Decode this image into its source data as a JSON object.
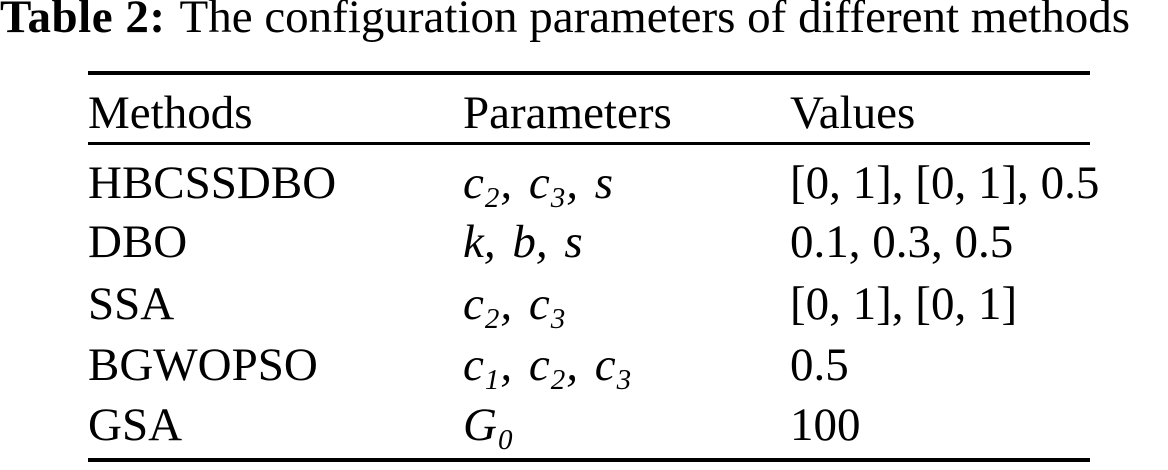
{
  "title": {
    "label": "Table 2:",
    "caption": "The configuration parameters of different methods"
  },
  "table": {
    "columns": [
      "Methods",
      "Parameters",
      "Values"
    ],
    "rows": [
      {
        "method": "HBCSSDBO",
        "parameters": [
          {
            "base": "c",
            "sub": "2"
          },
          {
            "base": "c",
            "sub": "3"
          },
          {
            "base": "s",
            "sub": ""
          }
        ],
        "values": "[0, 1], [0, 1], 0.5"
      },
      {
        "method": "DBO",
        "parameters": [
          {
            "base": "k",
            "sub": ""
          },
          {
            "base": "b",
            "sub": ""
          },
          {
            "base": "s",
            "sub": ""
          }
        ],
        "values": "0.1, 0.3, 0.5"
      },
      {
        "method": "SSA",
        "parameters": [
          {
            "base": "c",
            "sub": "2"
          },
          {
            "base": "c",
            "sub": "3"
          }
        ],
        "values": "[0, 1], [0, 1]"
      },
      {
        "method": "BGWOPSO",
        "parameters": [
          {
            "base": "c",
            "sub": "1"
          },
          {
            "base": "c",
            "sub": "2"
          },
          {
            "base": "c",
            "sub": "3"
          }
        ],
        "values": "0.5"
      },
      {
        "method": "GSA",
        "parameters": [
          {
            "base": "G",
            "sub": "0"
          }
        ],
        "values": "100"
      }
    ]
  },
  "colors": {
    "text": "#000000",
    "rule": "#000000",
    "background": "#ffffff"
  }
}
